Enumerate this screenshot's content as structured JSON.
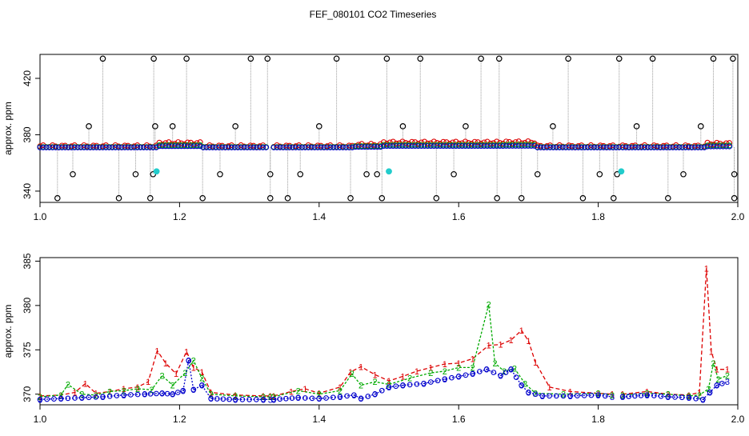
{
  "title": "FEF_080101  CO2 Timeseries",
  "chart_data": [
    {
      "type": "scatter",
      "ylabel": "approx. ppm",
      "xlim": [
        1.0,
        2.0
      ],
      "ylim": [
        332,
        437
      ],
      "xticks": [
        1.0,
        1.2,
        1.4,
        1.6,
        1.8,
        2.0
      ],
      "xtick_labels": [
        "1.0",
        "1.2",
        "1.4",
        "1.6",
        "1.8",
        "2.0"
      ],
      "yticks": [
        340,
        380,
        420
      ],
      "ytick_labels": [
        "340",
        "380",
        "420"
      ],
      "grid": false,
      "legend": "none",
      "colors": {
        "black": "#000000",
        "red": "#dd0000",
        "green": "#00aa00",
        "blue": "#0000cc",
        "cyan": "#22cccc",
        "gray": "#999999"
      },
      "baseline_segments": [
        {
          "from": 1.0,
          "to": 1.327
        },
        {
          "from": 1.335,
          "to": 1.665
        },
        {
          "from": 1.668,
          "to": 1.833
        },
        {
          "from": 1.835,
          "to": 1.99
        }
      ],
      "high_spikes": [
        1.09,
        1.163,
        1.21,
        1.302,
        1.326,
        1.425,
        1.497,
        1.545,
        1.632,
        1.658,
        1.757,
        1.83,
        1.878,
        1.965,
        1.993
      ],
      "low_spikes": [
        1.025,
        1.113,
        1.158,
        1.233,
        1.33,
        1.355,
        1.445,
        1.49,
        1.568,
        1.655,
        1.69,
        1.778,
        1.822,
        1.9,
        1.995
      ],
      "mid_low_points": [
        {
          "x": 1.047,
          "y": 352
        },
        {
          "x": 1.137,
          "y": 352
        },
        {
          "x": 1.162,
          "y": 352
        },
        {
          "x": 1.258,
          "y": 352
        },
        {
          "x": 1.33,
          "y": 352
        },
        {
          "x": 1.373,
          "y": 352
        },
        {
          "x": 1.468,
          "y": 352
        },
        {
          "x": 1.483,
          "y": 352
        },
        {
          "x": 1.593,
          "y": 352
        },
        {
          "x": 1.713,
          "y": 352
        },
        {
          "x": 1.802,
          "y": 352
        },
        {
          "x": 1.827,
          "y": 352
        },
        {
          "x": 1.922,
          "y": 352
        },
        {
          "x": 1.995,
          "y": 352
        }
      ],
      "mid_high_points": [
        {
          "x": 1.07,
          "y": 386
        },
        {
          "x": 1.165,
          "y": 386
        },
        {
          "x": 1.19,
          "y": 386
        },
        {
          "x": 1.28,
          "y": 386
        },
        {
          "x": 1.4,
          "y": 386
        },
        {
          "x": 1.52,
          "y": 386
        },
        {
          "x": 1.61,
          "y": 386
        },
        {
          "x": 1.735,
          "y": 386
        },
        {
          "x": 1.855,
          "y": 386
        },
        {
          "x": 1.947,
          "y": 386
        }
      ],
      "cyan_points": [
        {
          "x": 1.167,
          "y": 354
        },
        {
          "x": 1.5,
          "y": 354
        },
        {
          "x": 1.833,
          "y": 354
        }
      ]
    },
    {
      "type": "line",
      "ylabel": "approx. ppm",
      "xlim": [
        1.0,
        2.0
      ],
      "ylim": [
        368.8,
        385.4
      ],
      "xticks": [
        1.0,
        1.2,
        1.4,
        1.6,
        1.8,
        2.0
      ],
      "xtick_labels": [
        "1.0",
        "1.2",
        "1.4",
        "1.6",
        "1.8",
        "2.0"
      ],
      "yticks": [
        370,
        375,
        380,
        385
      ],
      "ytick_labels": [
        "370",
        "375",
        "380",
        "385"
      ],
      "grid": false,
      "legend": "none",
      "series": [
        {
          "marker": "1",
          "color": "#dd0000",
          "points": [
            [
              1.0,
              369.8
            ],
            [
              1.03,
              369.9
            ],
            [
              1.05,
              370.2
            ],
            [
              1.065,
              371.2
            ],
            [
              1.08,
              370.1
            ],
            [
              1.1,
              370.3
            ],
            [
              1.12,
              370.6
            ],
            [
              1.14,
              370.8
            ],
            [
              1.155,
              371.4
            ],
            [
              1.168,
              374.9
            ],
            [
              1.18,
              373.5
            ],
            [
              1.195,
              372.3
            ],
            [
              1.21,
              374.8
            ],
            [
              1.22,
              373.0
            ],
            [
              1.232,
              372.5
            ],
            [
              1.245,
              370.2
            ],
            [
              1.28,
              369.9
            ],
            [
              1.32,
              369.8
            ],
            [
              1.33,
              369.8
            ]
          ],
          "points2": [
            [
              1.335,
              369.8
            ],
            [
              1.36,
              370.3
            ],
            [
              1.38,
              370.6
            ],
            [
              1.4,
              370.1
            ],
            [
              1.43,
              370.8
            ],
            [
              1.445,
              372.5
            ],
            [
              1.46,
              373.1
            ],
            [
              1.48,
              372.2
            ],
            [
              1.5,
              371.5
            ],
            [
              1.52,
              372.0
            ],
            [
              1.54,
              372.6
            ],
            [
              1.56,
              373.0
            ],
            [
              1.58,
              373.4
            ],
            [
              1.6,
              373.5
            ],
            [
              1.62,
              374.0
            ],
            [
              1.643,
              375.5
            ],
            [
              1.66,
              375.6
            ],
            [
              1.675,
              376.1
            ],
            [
              1.69,
              377.2
            ],
            [
              1.7,
              376.0
            ],
            [
              1.71,
              373.6
            ],
            [
              1.73,
              370.8
            ],
            [
              1.76,
              370.3
            ],
            [
              1.8,
              370.1
            ],
            [
              1.82,
              370.0
            ]
          ],
          "points3": [
            [
              1.835,
              370.0
            ],
            [
              1.87,
              370.3
            ],
            [
              1.9,
              370.0
            ],
            [
              1.93,
              369.9
            ],
            [
              1.945,
              370.2
            ],
            [
              1.955,
              384.2
            ],
            [
              1.962,
              374.8
            ],
            [
              1.97,
              372.8
            ],
            [
              1.985,
              372.8
            ]
          ]
        },
        {
          "marker": "2",
          "color": "#00aa00",
          "points": [
            [
              1.0,
              369.7
            ],
            [
              1.03,
              369.9
            ],
            [
              1.04,
              371.1
            ],
            [
              1.06,
              370.0
            ],
            [
              1.08,
              369.9
            ],
            [
              1.1,
              370.3
            ],
            [
              1.12,
              370.4
            ],
            [
              1.14,
              370.6
            ],
            [
              1.16,
              370.5
            ],
            [
              1.175,
              372.1
            ],
            [
              1.19,
              371.0
            ],
            [
              1.208,
              372.4
            ],
            [
              1.22,
              373.8
            ],
            [
              1.232,
              371.8
            ],
            [
              1.245,
              370.0
            ],
            [
              1.28,
              369.8
            ],
            [
              1.32,
              369.7
            ],
            [
              1.33,
              369.7
            ]
          ],
          "points2": [
            [
              1.335,
              369.7
            ],
            [
              1.37,
              370.4
            ],
            [
              1.4,
              370.0
            ],
            [
              1.43,
              370.4
            ],
            [
              1.447,
              372.3
            ],
            [
              1.46,
              371.0
            ],
            [
              1.48,
              371.4
            ],
            [
              1.5,
              371.1
            ],
            [
              1.53,
              371.8
            ],
            [
              1.56,
              372.4
            ],
            [
              1.58,
              372.6
            ],
            [
              1.6,
              373.0
            ],
            [
              1.62,
              373.0
            ],
            [
              1.643,
              380.1
            ],
            [
              1.652,
              373.5
            ],
            [
              1.665,
              372.6
            ],
            [
              1.68,
              372.9
            ],
            [
              1.695,
              371.2
            ],
            [
              1.71,
              370.1
            ],
            [
              1.75,
              370.0
            ],
            [
              1.8,
              370.1
            ],
            [
              1.82,
              369.9
            ]
          ],
          "points3": [
            [
              1.835,
              369.9
            ],
            [
              1.87,
              370.1
            ],
            [
              1.9,
              370.0
            ],
            [
              1.93,
              369.8
            ],
            [
              1.945,
              369.9
            ],
            [
              1.958,
              370.6
            ],
            [
              1.965,
              373.5
            ],
            [
              1.972,
              371.7
            ],
            [
              1.985,
              372.1
            ]
          ]
        },
        {
          "marker": "3",
          "color": "#0000cc",
          "points": [
            [
              1.0,
              369.4
            ],
            [
              1.03,
              369.5
            ],
            [
              1.06,
              369.6
            ],
            [
              1.09,
              369.7
            ],
            [
              1.12,
              369.9
            ],
            [
              1.15,
              370.0
            ],
            [
              1.175,
              370.1
            ],
            [
              1.19,
              370.0
            ],
            [
              1.205,
              370.4
            ],
            [
              1.213,
              373.8
            ],
            [
              1.22,
              370.5
            ],
            [
              1.232,
              371.0
            ],
            [
              1.245,
              369.5
            ],
            [
              1.28,
              369.4
            ],
            [
              1.32,
              369.4
            ],
            [
              1.33,
              369.4
            ]
          ],
          "points2": [
            [
              1.335,
              369.4
            ],
            [
              1.37,
              369.6
            ],
            [
              1.4,
              369.5
            ],
            [
              1.43,
              369.7
            ],
            [
              1.45,
              369.9
            ],
            [
              1.46,
              369.5
            ],
            [
              1.48,
              370.0
            ],
            [
              1.5,
              370.8
            ],
            [
              1.52,
              371.0
            ],
            [
              1.55,
              371.2
            ],
            [
              1.58,
              371.7
            ],
            [
              1.6,
              372.0
            ],
            [
              1.62,
              372.3
            ],
            [
              1.64,
              372.8
            ],
            [
              1.66,
              372.1
            ],
            [
              1.675,
              372.8
            ],
            [
              1.69,
              371.0
            ],
            [
              1.7,
              370.2
            ],
            [
              1.72,
              369.8
            ],
            [
              1.76,
              369.8
            ],
            [
              1.8,
              369.9
            ],
            [
              1.82,
              369.7
            ]
          ],
          "points3": [
            [
              1.835,
              369.7
            ],
            [
              1.87,
              369.9
            ],
            [
              1.9,
              369.7
            ],
            [
              1.93,
              369.6
            ],
            [
              1.95,
              369.4
            ],
            [
              1.96,
              370.2
            ],
            [
              1.97,
              371.0
            ],
            [
              1.985,
              371.4
            ]
          ]
        }
      ]
    }
  ]
}
